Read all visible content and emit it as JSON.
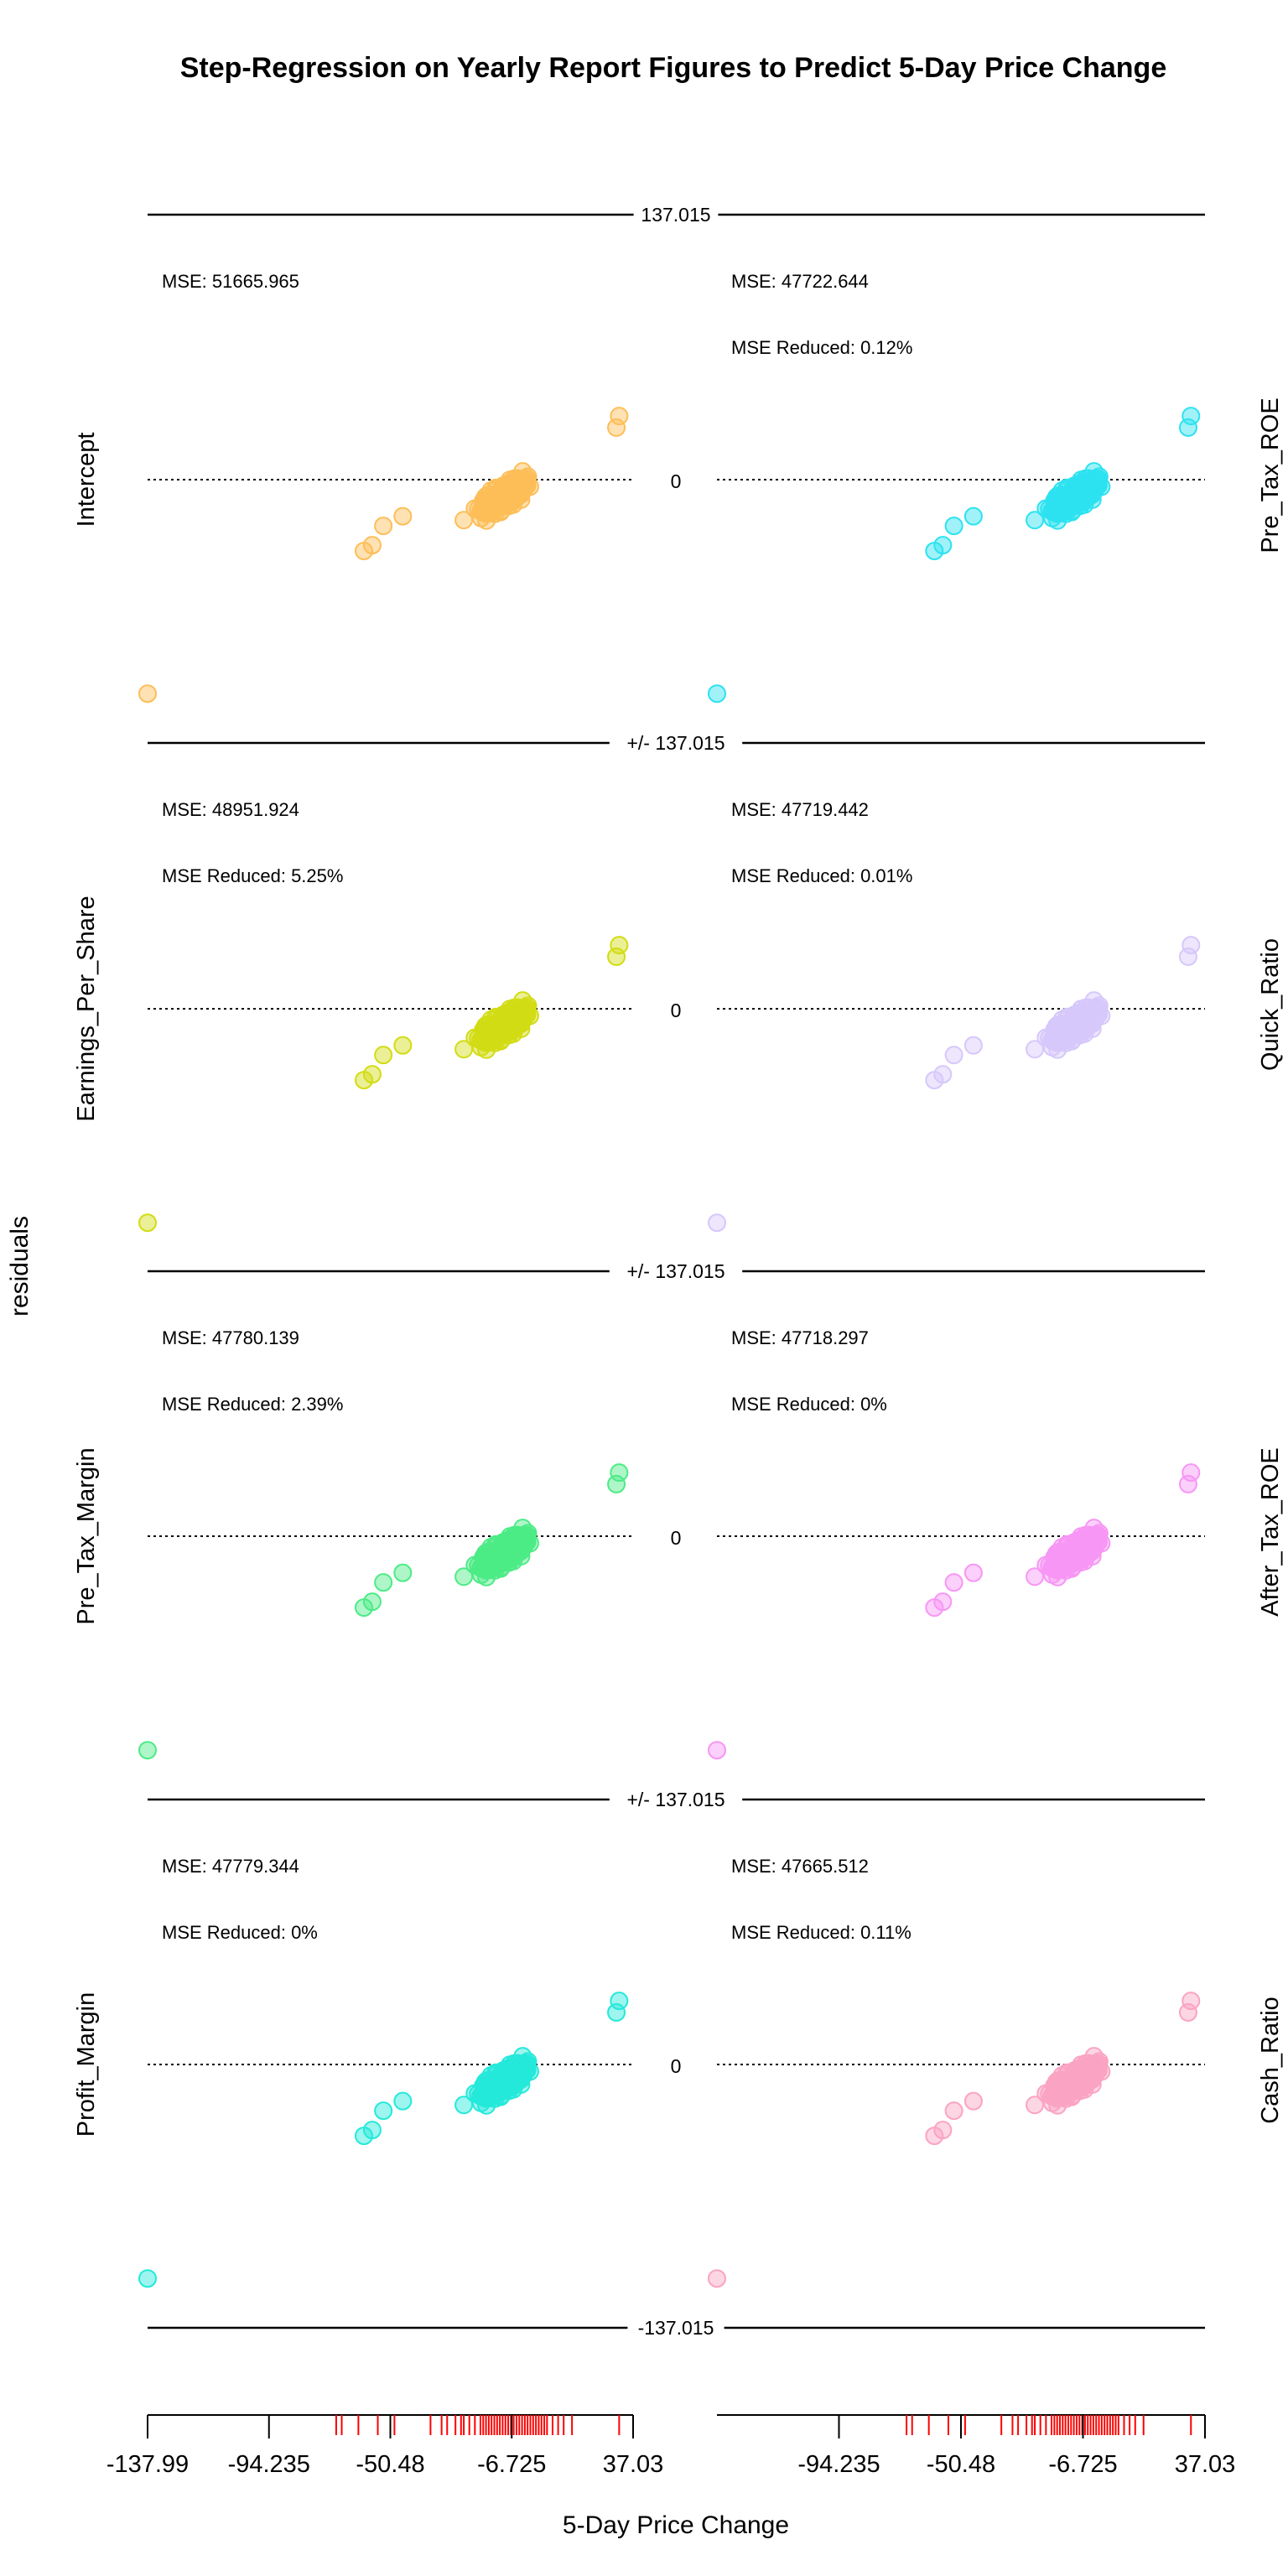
{
  "chart_data": {
    "type": "scatter",
    "title": "Step-Regression on Yearly Report Figures to Predict 5-Day Price Change",
    "xlabel": "5-Day Price Change",
    "ylabel": "residuals",
    "xlim": [
      -137.99,
      37.03
    ],
    "ylim": [
      -137.015,
      137.015
    ],
    "x_ticks": [
      "-137.99",
      "-94.235",
      "-50.48",
      "-6.725",
      "37.03"
    ],
    "x_ticks_right": [
      "-94.235",
      "-50.48",
      "-6.725",
      "37.03"
    ],
    "ref_line_labels": [
      "137.015",
      "+/- 137.015",
      "+/- 137.015",
      "+/- 137.015",
      "-137.015"
    ],
    "zero_label": "0",
    "panels": [
      {
        "name": "Intercept",
        "mse": "MSE: 51665.965",
        "mse_reduced": "",
        "color": "#FDBE58"
      },
      {
        "name": "Pre_Tax_ROE",
        "mse": "MSE: 47722.644",
        "mse_reduced": "MSE Reduced: 0.12%",
        "color": "#2DE2F0"
      },
      {
        "name": "Earnings_Per_Share",
        "mse": "MSE: 48951.924",
        "mse_reduced": "MSE Reduced: 5.25%",
        "color": "#D2DC14"
      },
      {
        "name": "Quick_Ratio",
        "mse": "MSE: 47719.442",
        "mse_reduced": "MSE Reduced: 0.01%",
        "color": "#D6C8FA"
      },
      {
        "name": "Pre_Tax_Margin",
        "mse": "MSE: 47780.139",
        "mse_reduced": "MSE Reduced: 2.39%",
        "color": "#4CEB86"
      },
      {
        "name": "After_Tax_ROE",
        "mse": "MSE: 47718.297",
        "mse_reduced": "MSE Reduced: 0%",
        "color": "#F796F5"
      },
      {
        "name": "Profit_Margin",
        "mse": "MSE: 47779.344",
        "mse_reduced": "MSE Reduced: 0%",
        "color": "#24E9DA"
      },
      {
        "name": "Cash_Ratio",
        "mse": "MSE: 47665.512",
        "mse_reduced": "MSE Reduced: 0.11%",
        "color": "#FBA3C3"
      }
    ],
    "outliers": [
      [
        -137.99,
        -111
      ],
      [
        -60,
        -37
      ],
      [
        -57,
        -34
      ],
      [
        -53,
        -24
      ],
      [
        -46,
        -19
      ],
      [
        31,
        27
      ],
      [
        32,
        33
      ],
      [
        -24,
        -21
      ],
      [
        -20,
        -15
      ],
      [
        -16,
        -11
      ]
    ],
    "rug_x": [
      -70,
      -68,
      -62,
      -55,
      -49,
      -36,
      -32,
      -30,
      -27,
      -25,
      -24,
      -22,
      -20,
      -18,
      -17,
      -16,
      -15,
      -14,
      -13,
      -12,
      -11,
      -10,
      -9,
      -8,
      -7,
      -6,
      -5,
      -4,
      -3,
      -2,
      -1,
      0,
      1,
      2,
      3,
      4,
      5,
      6,
      8,
      10,
      12,
      15,
      32
    ],
    "rug_color": "#FF0000",
    "grid": false,
    "legend": "none"
  }
}
